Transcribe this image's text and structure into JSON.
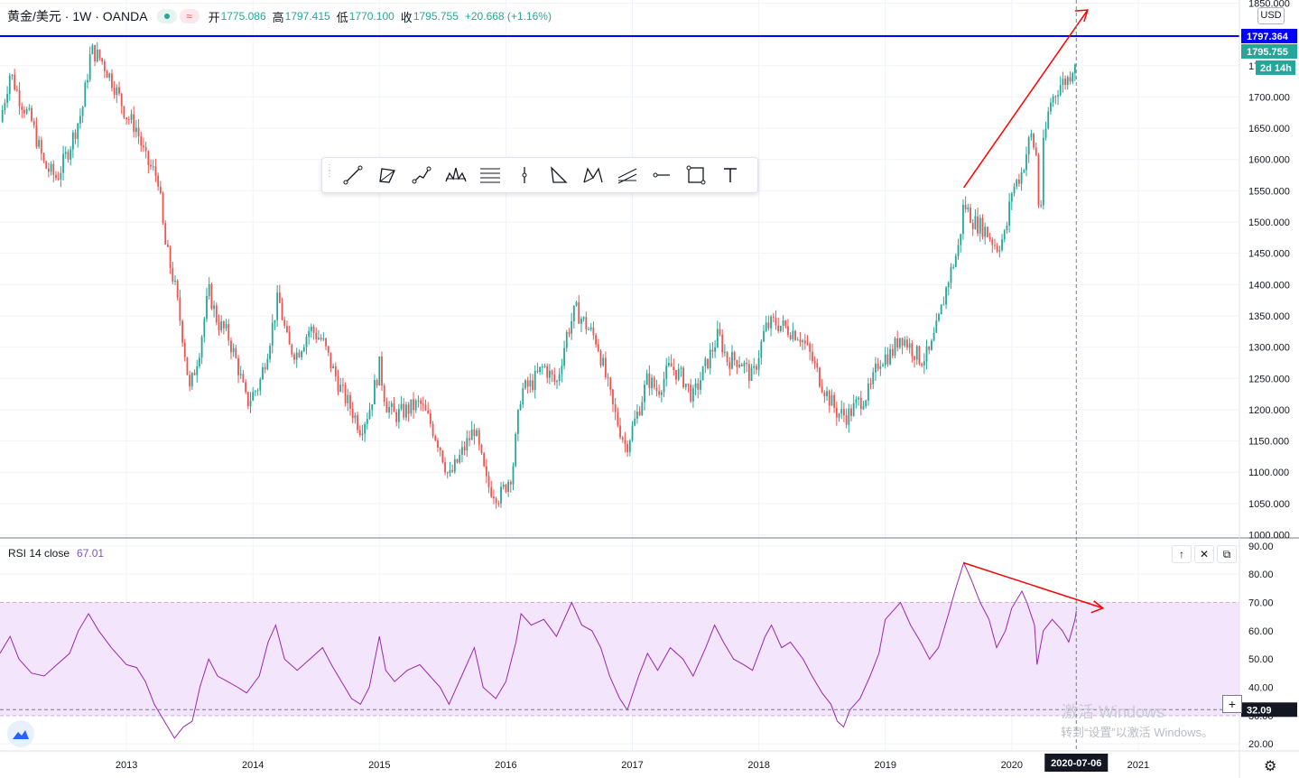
{
  "header": {
    "symbol": "黄金/美元 · 1W · OANDA",
    "wave_icon": "≈",
    "open_label": "开",
    "open_value": "1775.086",
    "high_label": "高",
    "high_value": "1797.415",
    "low_label": "低",
    "low_value": "1770.100",
    "close_label": "收",
    "close_value": "1795.755",
    "change_value": "+20.668 (+1.16%)"
  },
  "currency": "USD",
  "toolbar": [
    "trend-line",
    "triangle-pattern",
    "polyline",
    "head-shoulders",
    "fib-retracement",
    "vertical-line",
    "triangle",
    "xabcd-pattern",
    "parallel-channel",
    "horizontal-ray",
    "rectangle",
    "text"
  ],
  "rsi": {
    "label": "RSI 14 close",
    "value": "67.01"
  },
  "pane_buttons": [
    "↑",
    "✕",
    "⧉"
  ],
  "watermark": {
    "line1": "激活 Windows",
    "line2": "转到“设置”以激活 Windows。"
  },
  "colors": {
    "up": "#26a69a",
    "down": "#ef5350",
    "rsi": "#9c27b0",
    "band": "#f3e5fc",
    "hline": "#0000ff",
    "arrow": "#ff0000"
  },
  "chart_data": [
    {
      "type": "candlestick",
      "title": "黄金/美元 · 1W · OANDA",
      "x_ticks": [
        "2013",
        "2014",
        "2015",
        "2016",
        "2017",
        "2018",
        "2019",
        "2020",
        "2021"
      ],
      "x_tick_years": [
        2013,
        2014,
        2015,
        2016,
        2017,
        2018,
        2019,
        2020,
        2021
      ],
      "y_ticks": [
        "1000.000",
        "1050.000",
        "1100.000",
        "1150.000",
        "1200.000",
        "1250.000",
        "1300.000",
        "1350.000",
        "1400.000",
        "1450.000",
        "1500.000",
        "1550.000",
        "1600.000",
        "1650.000",
        "1700.000",
        "1750.000",
        "1800.000",
        "1850.000"
      ],
      "ylim": [
        995,
        1855
      ],
      "x_start": 2012.0,
      "x_end": 2021.8,
      "close_series": [
        [
          2012.0,
          1660
        ],
        [
          2012.08,
          1740
        ],
        [
          2012.15,
          1700
        ],
        [
          2012.25,
          1660
        ],
        [
          2012.35,
          1590
        ],
        [
          2012.45,
          1570
        ],
        [
          2012.55,
          1620
        ],
        [
          2012.65,
          1680
        ],
        [
          2012.72,
          1775
        ],
        [
          2012.8,
          1760
        ],
        [
          2012.9,
          1720
        ],
        [
          2013.0,
          1670
        ],
        [
          2013.08,
          1650
        ],
        [
          2013.15,
          1600
        ],
        [
          2013.25,
          1570
        ],
        [
          2013.3,
          1470
        ],
        [
          2013.38,
          1400
        ],
        [
          2013.45,
          1310
        ],
        [
          2013.5,
          1230
        ],
        [
          2013.58,
          1300
        ],
        [
          2013.65,
          1390
        ],
        [
          2013.72,
          1340
        ],
        [
          2013.8,
          1320
        ],
        [
          2013.88,
          1270
        ],
        [
          2013.95,
          1210
        ],
        [
          2014.05,
          1240
        ],
        [
          2014.12,
          1300
        ],
        [
          2014.2,
          1380
        ],
        [
          2014.28,
          1300
        ],
        [
          2014.35,
          1290
        ],
        [
          2014.45,
          1330
        ],
        [
          2014.55,
          1310
        ],
        [
          2014.62,
          1270
        ],
        [
          2014.7,
          1230
        ],
        [
          2014.78,
          1200
        ],
        [
          2014.85,
          1170
        ],
        [
          2014.92,
          1200
        ],
        [
          2015.0,
          1270
        ],
        [
          2015.05,
          1210
        ],
        [
          2015.12,
          1190
        ],
        [
          2015.22,
          1200
        ],
        [
          2015.32,
          1210
        ],
        [
          2015.4,
          1180
        ],
        [
          2015.48,
          1140
        ],
        [
          2015.55,
          1090
        ],
        [
          2015.65,
          1130
        ],
        [
          2015.75,
          1170
        ],
        [
          2015.85,
          1080
        ],
        [
          2015.95,
          1060
        ],
        [
          2016.05,
          1100
        ],
        [
          2016.12,
          1230
        ],
        [
          2016.2,
          1240
        ],
        [
          2016.3,
          1270
        ],
        [
          2016.4,
          1240
        ],
        [
          2016.48,
          1320
        ],
        [
          2016.55,
          1360
        ],
        [
          2016.65,
          1330
        ],
        [
          2016.72,
          1310
        ],
        [
          2016.78,
          1260
        ],
        [
          2016.85,
          1200
        ],
        [
          2016.95,
          1140
        ],
        [
          2017.05,
          1200
        ],
        [
          2017.12,
          1250
        ],
        [
          2017.2,
          1230
        ],
        [
          2017.3,
          1270
        ],
        [
          2017.4,
          1250
        ],
        [
          2017.48,
          1220
        ],
        [
          2017.58,
          1270
        ],
        [
          2017.68,
          1320
        ],
        [
          2017.75,
          1280
        ],
        [
          2017.85,
          1280
        ],
        [
          2017.95,
          1250
        ],
        [
          2018.05,
          1330
        ],
        [
          2018.12,
          1340
        ],
        [
          2018.22,
          1330
        ],
        [
          2018.32,
          1320
        ],
        [
          2018.4,
          1290
        ],
        [
          2018.48,
          1250
        ],
        [
          2018.55,
          1220
        ],
        [
          2018.62,
          1195
        ],
        [
          2018.7,
          1190
        ],
        [
          2018.78,
          1210
        ],
        [
          2018.88,
          1230
        ],
        [
          2018.95,
          1280
        ],
        [
          2019.05,
          1290
        ],
        [
          2019.12,
          1320
        ],
        [
          2019.2,
          1300
        ],
        [
          2019.28,
          1280
        ],
        [
          2019.35,
          1290
        ],
        [
          2019.42,
          1340
        ],
        [
          2019.5,
          1410
        ],
        [
          2019.58,
          1460
        ],
        [
          2019.62,
          1530
        ],
        [
          2019.7,
          1500
        ],
        [
          2019.78,
          1490
        ],
        [
          2019.88,
          1460
        ],
        [
          2019.95,
          1480
        ],
        [
          2020.0,
          1550
        ],
        [
          2020.08,
          1580
        ],
        [
          2020.15,
          1640
        ],
        [
          2020.2,
          1600
        ],
        [
          2020.22,
          1480
        ],
        [
          2020.25,
          1620
        ],
        [
          2020.3,
          1690
        ],
        [
          2020.38,
          1720
        ],
        [
          2020.45,
          1730
        ],
        [
          2020.5,
          1760
        ],
        [
          2020.51,
          1796
        ]
      ]
    },
    {
      "type": "line",
      "title": "RSI 14 close",
      "y_ticks": [
        "20.00",
        "30.00",
        "40.00",
        "50.00",
        "60.00",
        "70.00",
        "80.00",
        "90.00"
      ],
      "ylim": [
        17.5,
        92.5
      ],
      "band": [
        30,
        70
      ],
      "values": [
        [
          2012.0,
          52
        ],
        [
          2012.08,
          58
        ],
        [
          2012.15,
          50
        ],
        [
          2012.25,
          45
        ],
        [
          2012.35,
          44
        ],
        [
          2012.45,
          48
        ],
        [
          2012.55,
          52
        ],
        [
          2012.62,
          60
        ],
        [
          2012.7,
          66
        ],
        [
          2012.78,
          60
        ],
        [
          2012.88,
          54
        ],
        [
          2013.0,
          48
        ],
        [
          2013.08,
          47
        ],
        [
          2013.15,
          42
        ],
        [
          2013.22,
          34
        ],
        [
          2013.3,
          28
        ],
        [
          2013.38,
          22
        ],
        [
          2013.45,
          26
        ],
        [
          2013.52,
          28
        ],
        [
          2013.58,
          40
        ],
        [
          2013.65,
          50
        ],
        [
          2013.72,
          44
        ],
        [
          2013.8,
          42
        ],
        [
          2013.88,
          40
        ],
        [
          2013.95,
          38
        ],
        [
          2014.05,
          44
        ],
        [
          2014.12,
          56
        ],
        [
          2014.18,
          62
        ],
        [
          2014.25,
          50
        ],
        [
          2014.35,
          46
        ],
        [
          2014.45,
          50
        ],
        [
          2014.55,
          54
        ],
        [
          2014.62,
          48
        ],
        [
          2014.7,
          42
        ],
        [
          2014.78,
          36
        ],
        [
          2014.85,
          34
        ],
        [
          2014.92,
          40
        ],
        [
          2015.0,
          58
        ],
        [
          2015.05,
          46
        ],
        [
          2015.12,
          42
        ],
        [
          2015.22,
          46
        ],
        [
          2015.32,
          48
        ],
        [
          2015.4,
          44
        ],
        [
          2015.48,
          40
        ],
        [
          2015.55,
          34
        ],
        [
          2015.65,
          44
        ],
        [
          2015.75,
          54
        ],
        [
          2015.82,
          40
        ],
        [
          2015.92,
          36
        ],
        [
          2016.0,
          42
        ],
        [
          2016.08,
          56
        ],
        [
          2016.12,
          66
        ],
        [
          2016.2,
          62
        ],
        [
          2016.3,
          64
        ],
        [
          2016.4,
          58
        ],
        [
          2016.48,
          66
        ],
        [
          2016.52,
          70
        ],
        [
          2016.6,
          62
        ],
        [
          2016.68,
          60
        ],
        [
          2016.75,
          54
        ],
        [
          2016.82,
          44
        ],
        [
          2016.9,
          36
        ],
        [
          2016.96,
          32
        ],
        [
          2017.05,
          44
        ],
        [
          2017.12,
          52
        ],
        [
          2017.2,
          46
        ],
        [
          2017.3,
          54
        ],
        [
          2017.4,
          50
        ],
        [
          2017.48,
          44
        ],
        [
          2017.58,
          54
        ],
        [
          2017.65,
          62
        ],
        [
          2017.72,
          56
        ],
        [
          2017.8,
          50
        ],
        [
          2017.88,
          48
        ],
        [
          2017.95,
          46
        ],
        [
          2018.05,
          58
        ],
        [
          2018.1,
          62
        ],
        [
          2018.18,
          54
        ],
        [
          2018.25,
          56
        ],
        [
          2018.35,
          50
        ],
        [
          2018.42,
          44
        ],
        [
          2018.5,
          38
        ],
        [
          2018.57,
          34
        ],
        [
          2018.62,
          28
        ],
        [
          2018.67,
          26
        ],
        [
          2018.72,
          32
        ],
        [
          2018.8,
          36
        ],
        [
          2018.88,
          44
        ],
        [
          2018.95,
          52
        ],
        [
          2019.0,
          64
        ],
        [
          2019.08,
          68
        ],
        [
          2019.12,
          70
        ],
        [
          2019.2,
          62
        ],
        [
          2019.28,
          56
        ],
        [
          2019.35,
          50
        ],
        [
          2019.42,
          54
        ],
        [
          2019.5,
          66
        ],
        [
          2019.55,
          74
        ],
        [
          2019.62,
          84
        ],
        [
          2019.68,
          78
        ],
        [
          2019.75,
          70
        ],
        [
          2019.82,
          64
        ],
        [
          2019.88,
          54
        ],
        [
          2019.95,
          60
        ],
        [
          2020.0,
          68
        ],
        [
          2020.08,
          74
        ],
        [
          2020.12,
          70
        ],
        [
          2020.18,
          62
        ],
        [
          2020.2,
          48
        ],
        [
          2020.25,
          60
        ],
        [
          2020.32,
          64
        ],
        [
          2020.4,
          60
        ],
        [
          2020.45,
          56
        ],
        [
          2020.5,
          64
        ],
        [
          2020.51,
          67
        ]
      ]
    }
  ],
  "labels": {
    "hline_price": "1797.364",
    "last_price": "1795.755",
    "countdown": "2d 14h",
    "rsi_level": "32.09",
    "cursor_date": "2020-07-06"
  }
}
